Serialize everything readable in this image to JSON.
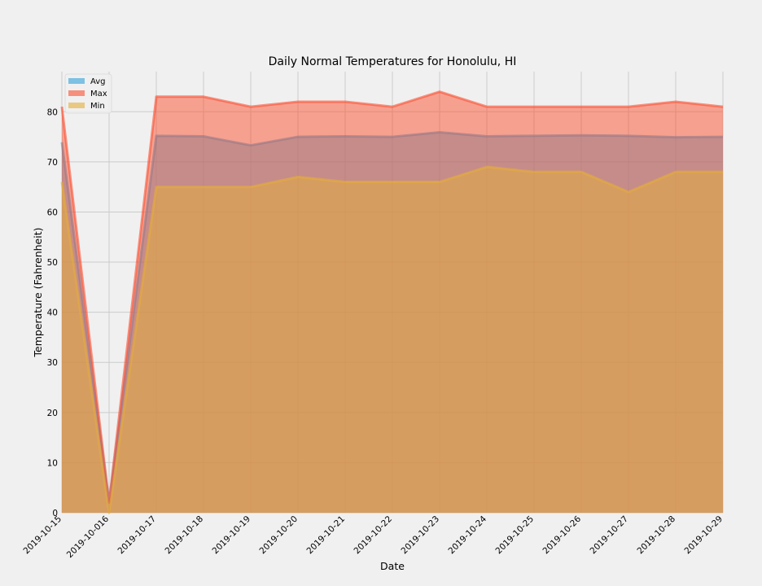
{
  "chart_data": {
    "type": "area",
    "title": "Daily Normal Temperatures for Honolulu, HI",
    "xlabel": "Date",
    "ylabel": "Temperature (Fahrenheit)",
    "categories": [
      "2019-10-15",
      "2019-10-016",
      "2019-10-17",
      "2019-10-18",
      "2019-10-19",
      "2019-10-20",
      "2019-10-21",
      "2019-10-22",
      "2019-10-23",
      "2019-10-24",
      "2019-10-25",
      "2019-10-26",
      "2019-10-27",
      "2019-10-28",
      "2019-10-29"
    ],
    "ylim": [
      0,
      88
    ],
    "yticks": [
      0,
      10,
      20,
      30,
      40,
      50,
      60,
      70,
      80
    ],
    "grid": true,
    "stacked": false,
    "legend_position": "top-left",
    "series": [
      {
        "name": "Avg",
        "color": "#30a2da",
        "values": [
          73.9,
          2,
          75.2,
          75.1,
          73.3,
          75.0,
          75.1,
          75.0,
          75.9,
          75.1,
          75.2,
          75.3,
          75.2,
          74.9,
          75.0
        ]
      },
      {
        "name": "Max",
        "color": "#fc4f30",
        "values": [
          81,
          2,
          83,
          83,
          81,
          82,
          82,
          81,
          84,
          81,
          81,
          81,
          81,
          82,
          81
        ]
      },
      {
        "name": "Min",
        "color": "#e5ae38",
        "values": [
          66,
          0,
          65,
          65,
          65,
          67,
          66,
          66,
          66,
          69,
          68,
          68,
          64,
          68,
          68
        ]
      }
    ]
  }
}
